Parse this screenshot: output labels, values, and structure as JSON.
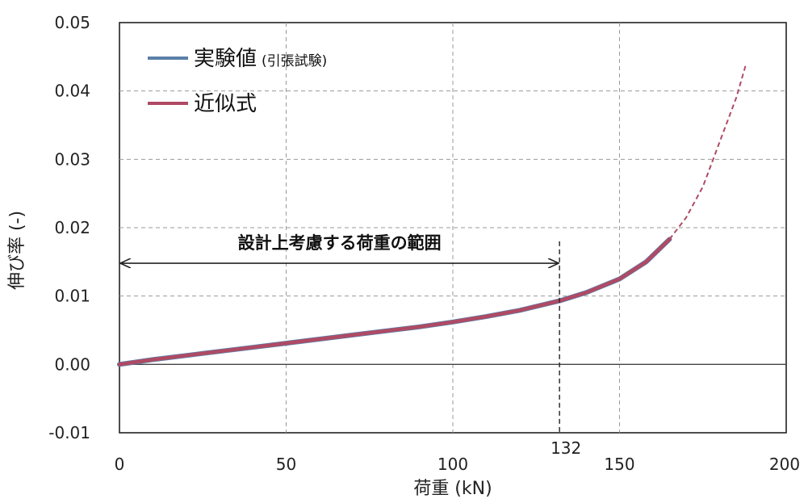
{
  "chart_data": {
    "type": "line",
    "title": "",
    "xlabel": "荷重 (kN)",
    "ylabel": "伸び率 (-)",
    "xlim": [
      0,
      200
    ],
    "ylim": [
      -0.01,
      0.05
    ],
    "x_ticks": [
      "0",
      "50",
      "100",
      "150",
      "200"
    ],
    "x_tick_values": [
      0,
      50,
      100,
      150,
      200
    ],
    "y_ticks": [
      "0.05",
      "0.04",
      "0.03",
      "0.02",
      "0.01",
      "0.00",
      "-0.01"
    ],
    "y_tick_values": [
      0.05,
      0.04,
      0.03,
      0.02,
      0.01,
      0.0,
      -0.01
    ],
    "grid": true,
    "legend_position": "top-left",
    "series": [
      {
        "name": "実験値",
        "name_suffix": "(引張試験)",
        "color": "#5b7fa8",
        "style": "solid",
        "x": [
          0,
          10,
          20,
          30,
          40,
          50,
          60,
          70,
          80,
          90,
          100,
          110,
          120,
          132,
          140,
          150,
          158,
          165
        ],
        "y": [
          0.0,
          0.0007,
          0.0013,
          0.0019,
          0.0025,
          0.0031,
          0.0037,
          0.0043,
          0.0049,
          0.0055,
          0.0062,
          0.007,
          0.0079,
          0.0093,
          0.0105,
          0.0125,
          0.015,
          0.0183
        ]
      },
      {
        "name": "近似式",
        "color": "#b04a64",
        "style": "solid",
        "x": [
          0,
          10,
          20,
          30,
          40,
          50,
          60,
          70,
          80,
          90,
          100,
          110,
          120,
          132,
          140,
          150,
          158,
          165
        ],
        "y": [
          0.0,
          0.0007,
          0.0013,
          0.0019,
          0.0025,
          0.0031,
          0.0037,
          0.0043,
          0.0049,
          0.0055,
          0.0062,
          0.007,
          0.0079,
          0.0093,
          0.0105,
          0.0125,
          0.015,
          0.0183
        ],
        "extension": {
          "style": "dashed",
          "x": [
            165,
            170,
            175,
            180,
            185,
            188
          ],
          "y": [
            0.0183,
            0.0215,
            0.026,
            0.0325,
            0.039,
            0.044
          ]
        }
      }
    ],
    "annotations": [
      {
        "text": "設計上考慮する荷重の範囲",
        "type": "range-arrow",
        "x_start": 0,
        "x_end": 132,
        "y": 0.0148
      },
      {
        "text": "132",
        "type": "reference-line",
        "x": 132,
        "y_from": -0.01,
        "y_to": 0.018
      }
    ]
  }
}
